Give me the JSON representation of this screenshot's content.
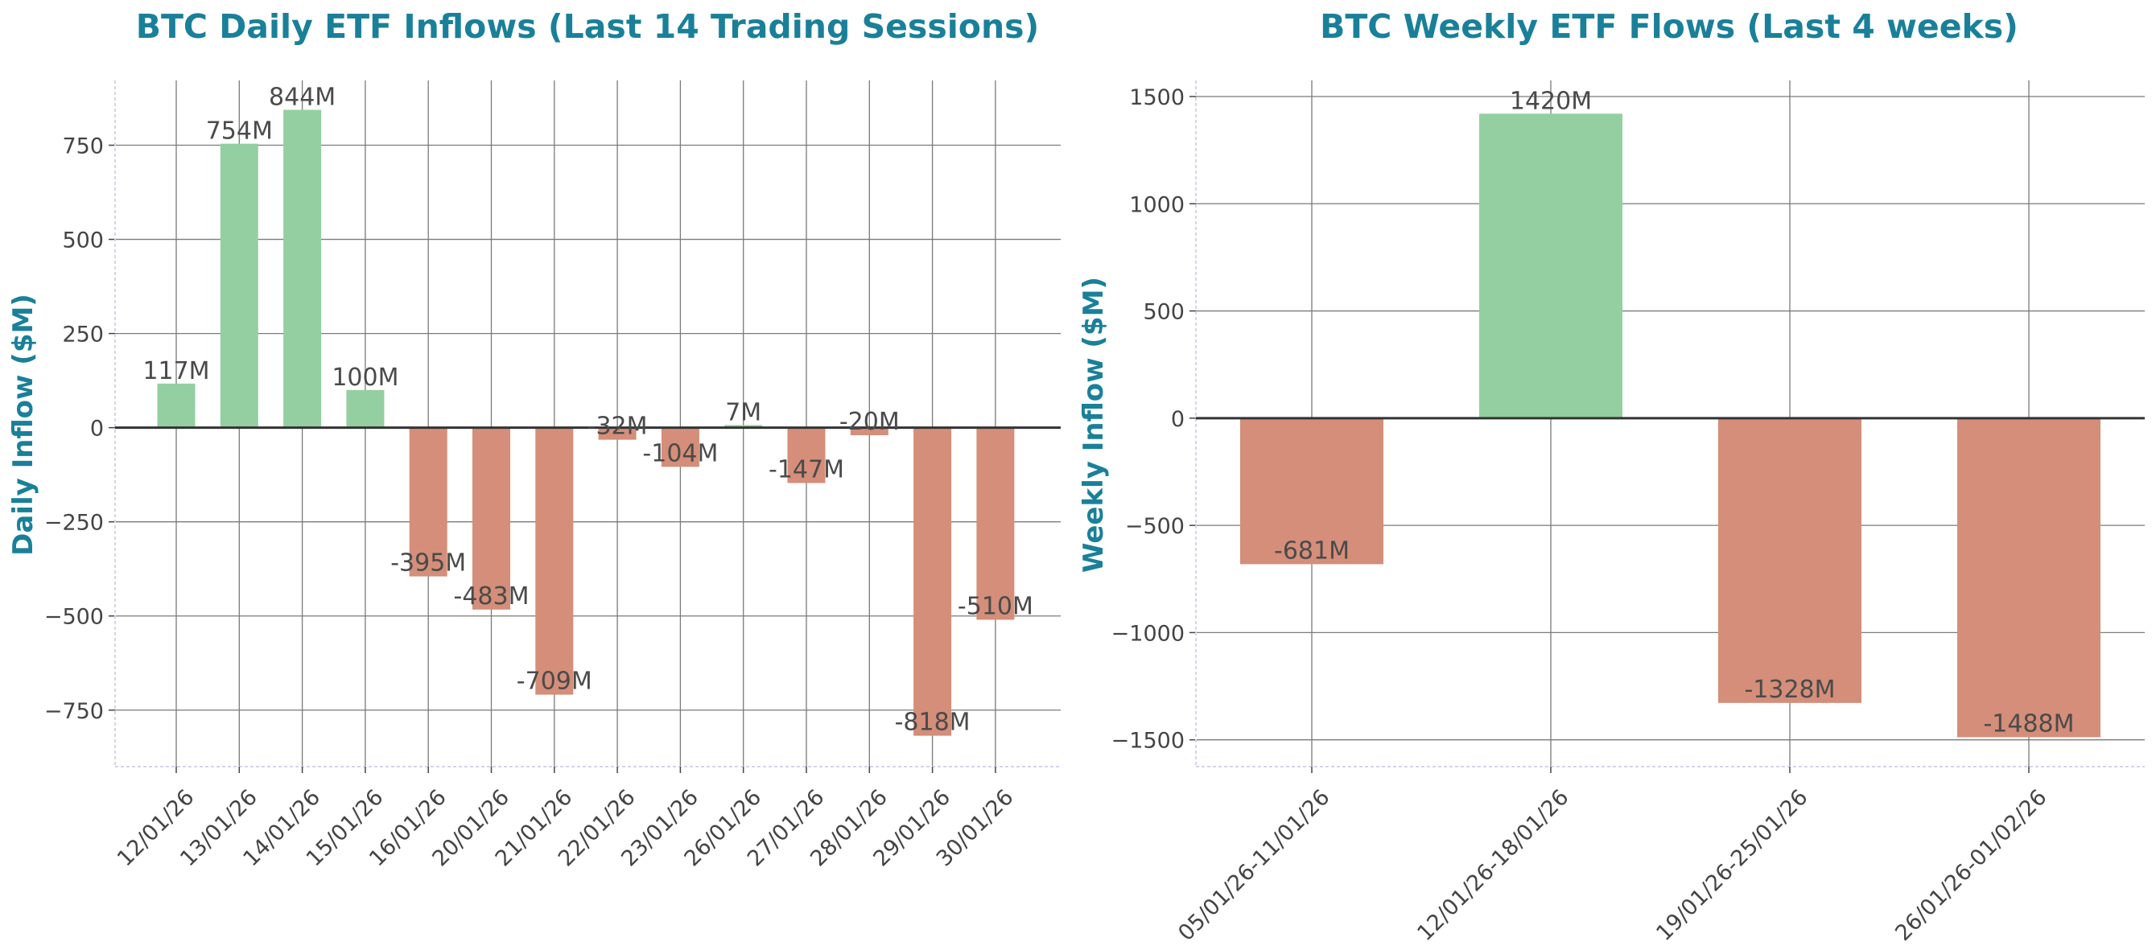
{
  "colors": {
    "title": "#1a8099",
    "positive": "#94cfa1",
    "negative": "#d48e79",
    "text": "#444444"
  },
  "chart_data": [
    {
      "type": "bar",
      "title": "BTC Daily ETF Inflows (Last 14 Trading Sessions)",
      "xlabel": "",
      "ylabel": "Daily Inflow ($M)",
      "categories": [
        "12/01/26",
        "13/01/26",
        "14/01/26",
        "15/01/26",
        "16/01/26",
        "20/01/26",
        "21/01/26",
        "22/01/26",
        "23/01/26",
        "26/01/26",
        "27/01/26",
        "28/01/26",
        "29/01/26",
        "30/01/26"
      ],
      "values": [
        117,
        754,
        844,
        100,
        -395,
        -483,
        -709,
        -32,
        -104,
        7,
        -147,
        -20,
        -818,
        -510
      ],
      "data_labels": [
        "117M",
        "754M",
        "844M",
        "100M",
        "-395M",
        "-483M",
        "-709M",
        "-32M",
        "-104M",
        "7M",
        "-147M",
        "-20M",
        "-818M",
        "-510M"
      ],
      "yticks": [
        -750,
        -500,
        -250,
        0,
        250,
        500,
        750
      ],
      "ytick_labels": [
        "−750",
        "−500",
        "−250",
        "0",
        "250",
        "500",
        "750"
      ],
      "ylim": [
        -900,
        922
      ],
      "grid": true,
      "legend": "none"
    },
    {
      "type": "bar",
      "title": "BTC Weekly ETF Flows (Last 4 weeks)",
      "xlabel": "",
      "ylabel": "Weekly Inflow ($M)",
      "categories": [
        "05/01/26-11/01/26",
        "12/01/26-18/01/26",
        "19/01/26-25/01/26",
        "26/01/26-01/02/26"
      ],
      "values": [
        -681,
        1420,
        -1328,
        -1488
      ],
      "data_labels": [
        "-681M",
        "1420M",
        "-1328M",
        "-1488M"
      ],
      "yticks": [
        -1500,
        -1000,
        -500,
        0,
        500,
        1000,
        1500
      ],
      "ytick_labels": [
        "−1500",
        "−1000",
        "−500",
        "0",
        "500",
        "1000",
        "1500"
      ],
      "ylim": [
        -1625,
        1575
      ],
      "grid": true,
      "legend": "none"
    }
  ]
}
